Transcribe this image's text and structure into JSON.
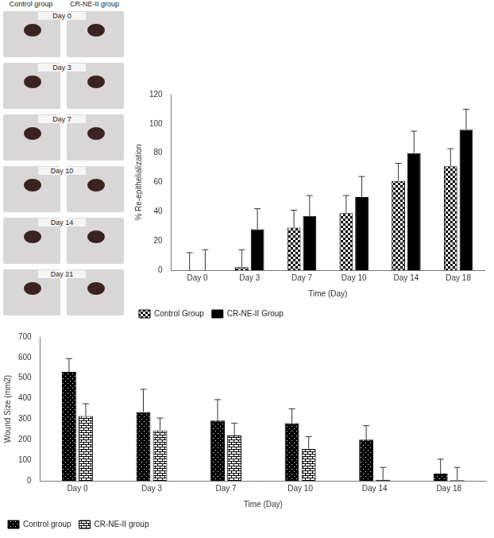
{
  "photo_panel": {
    "columns": [
      "Control group",
      "CR-NE-II group"
    ],
    "rows": [
      "Day 0",
      "Day 3",
      "Day 7",
      "Day 10",
      "Day 14",
      "Day 21"
    ]
  },
  "chart_data": [
    {
      "type": "bar",
      "categories": [
        "Day 0",
        "Day 3",
        "Day 7",
        "Day 10",
        "Day 14",
        "Day 18"
      ],
      "series": [
        {
          "name": "Control Group",
          "color": "#000000",
          "values": [
            0,
            2,
            29,
            39,
            61,
            71
          ],
          "errors": [
            12,
            12,
            12,
            12,
            12,
            12
          ]
        },
        {
          "name": "CR-NE-II Group",
          "color": "#000000",
          "values": [
            0,
            28,
            37,
            50,
            80,
            96
          ],
          "errors": [
            14,
            14,
            14,
            14,
            15,
            14
          ]
        }
      ],
      "ylim": [
        0,
        120
      ],
      "yticks": [
        0,
        20,
        40,
        60,
        80,
        100,
        120
      ],
      "y_label": "% Re-epithelialization",
      "x_label": "Time (Day)",
      "grid": false,
      "legend": "bottom"
    },
    {
      "type": "bar",
      "categories": [
        "Day 0",
        "Day 3",
        "Day 7",
        "Day 10",
        "Day 14",
        "Day 18"
      ],
      "series": [
        {
          "name": "Control group",
          "color": "#000000",
          "values": [
            530,
            335,
            293,
            280,
            200,
            35
          ],
          "errors": [
            65,
            110,
            102,
            70,
            68,
            70
          ]
        },
        {
          "name": "CR-NE-II group",
          "color": "#000000",
          "values": [
            315,
            245,
            220,
            155,
            5,
            3
          ],
          "errors": [
            60,
            60,
            60,
            60,
            60,
            62
          ]
        }
      ],
      "ylim": [
        0,
        700
      ],
      "yticks": [
        0,
        100,
        200,
        300,
        400,
        500,
        600,
        700
      ],
      "y_label": "Wound Size (mm2)",
      "x_label": "Time (Day)",
      "grid": false,
      "legend": "bottom"
    }
  ]
}
